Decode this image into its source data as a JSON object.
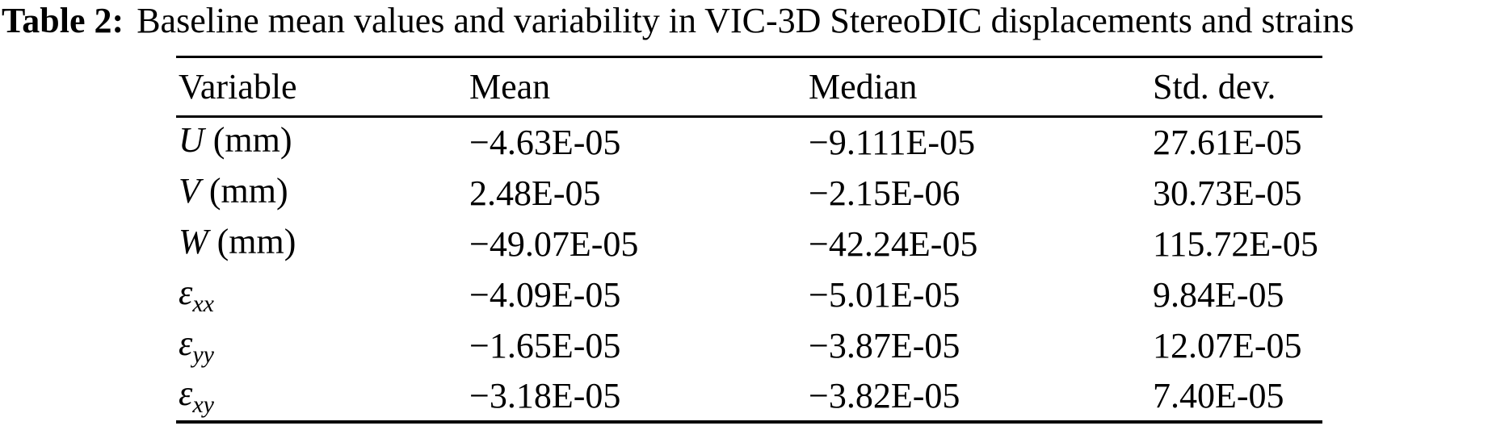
{
  "caption": {
    "label": "Table 2:",
    "text": "Baseline mean values and variability in VIC-3D StereoDIC displacements and strains"
  },
  "table": {
    "headers": [
      "Variable",
      "Mean",
      "Median",
      "Std. dev."
    ],
    "rows": [
      {
        "symbol": "U",
        "subscript": "",
        "suffix": " (mm)",
        "mean": "−4.63E-05",
        "median": "−9.111E-05",
        "std_dev": "27.61E-05"
      },
      {
        "symbol": "V",
        "subscript": "",
        "suffix": " (mm)",
        "mean": "2.48E-05",
        "median": "−2.15E-06",
        "std_dev": "30.73E-05"
      },
      {
        "symbol": "W",
        "subscript": "",
        "suffix": " (mm)",
        "mean": "−49.07E-05",
        "median": "−42.24E-05",
        "std_dev": "115.72E-05"
      },
      {
        "symbol": "ε",
        "subscript": "xx",
        "suffix": "",
        "mean": "−4.09E-05",
        "median": "−5.01E-05",
        "std_dev": "9.84E-05"
      },
      {
        "symbol": "ε",
        "subscript": "yy",
        "suffix": "",
        "mean": "−1.65E-05",
        "median": "−3.87E-05",
        "std_dev": "12.07E-05"
      },
      {
        "symbol": "ε",
        "subscript": "xy",
        "suffix": "",
        "mean": "−3.18E-05",
        "median": "−3.82E-05",
        "std_dev": "7.40E-05"
      }
    ]
  },
  "colors": {
    "text": "#000000",
    "background": "#ffffff",
    "rule": "#000000"
  }
}
